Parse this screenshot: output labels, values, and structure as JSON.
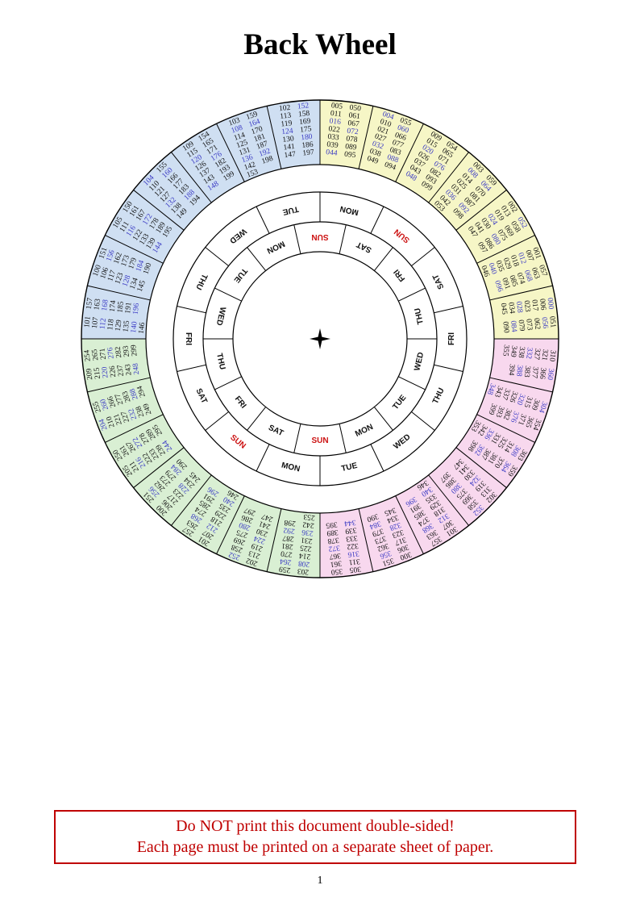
{
  "title": "Back Wheel",
  "page_number": "1",
  "warning": {
    "line1": "Do NOT print this document double-sided!",
    "line2": "Each page must be printed on a separate sheet of paper."
  },
  "colors": {
    "yellow": "#f6f6c6",
    "pink": "#f8d8ee",
    "green": "#d9efd3",
    "blue": "#cfdff2",
    "leap_blue": "#3b3bc4",
    "sun_red": "#cc1111",
    "warning_red": "#bf0000",
    "line": "#000000"
  },
  "wheel": {
    "quadrants": [
      {
        "name": "years-000-099",
        "color_key": "yellow"
      },
      {
        "name": "years-300-399",
        "color_key": "pink"
      },
      {
        "name": "years-200-299",
        "color_key": "green"
      },
      {
        "name": "years-100-199",
        "color_key": "blue"
      }
    ],
    "sectors": [
      {
        "cols": [
          [
            "005",
            "011",
            "016",
            "022",
            "033",
            "039",
            "044"
          ],
          [
            "050",
            "061",
            "067",
            "072",
            "078",
            "089",
            "095"
          ]
        ],
        "blue": [
          "016",
          "044",
          "072"
        ]
      },
      {
        "cols": [
          [
            "004",
            "010",
            "021",
            "027",
            "032",
            "038",
            "049"
          ],
          [
            "055",
            "060",
            "066",
            "077",
            "083",
            "088",
            "094"
          ]
        ],
        "blue": [
          "004",
          "032",
          "060",
          "088"
        ]
      },
      {
        "cols": [
          [
            "009",
            "015",
            "020",
            "026",
            "037",
            "043",
            "048"
          ],
          [
            "054",
            "065",
            "071",
            "076",
            "082",
            "093",
            "099"
          ]
        ],
        "blue": [
          "020",
          "048",
          "076"
        ]
      },
      {
        "cols": [
          [
            "003",
            "008",
            "014",
            "025",
            "031",
            "036",
            "042",
            "053"
          ],
          [
            "059",
            "064",
            "070",
            "081",
            "087",
            "092",
            "098"
          ]
        ],
        "blue": [
          "008",
          "036",
          "064",
          "092"
        ]
      },
      {
        "cols": [
          [
            "002",
            "013",
            "019",
            "024",
            "030",
            "041",
            "047"
          ],
          [
            "052",
            "058",
            "069",
            "075",
            "080",
            "086",
            "097"
          ]
        ],
        "blue": [
          "024",
          "052",
          "080"
        ]
      },
      {
        "cols": [
          [
            "001",
            "007",
            "012",
            "018",
            "029",
            "035",
            "040",
            "046"
          ],
          [
            "057",
            "063",
            "068",
            "074",
            "085",
            "091",
            "096"
          ]
        ],
        "blue": [
          "012",
          "040",
          "068",
          "096"
        ]
      },
      {
        "cols": [
          [
            "000",
            "006",
            "017",
            "023",
            "028",
            "034",
            "045"
          ],
          [
            "051",
            "056",
            "062",
            "073",
            "079",
            "084",
            "090"
          ]
        ],
        "blue": [
          "000",
          "028",
          "056",
          "084"
        ]
      },
      {
        "cols": [
          [
            "310",
            "321",
            "327",
            "332",
            "338",
            "349",
            "355"
          ],
          [
            "360",
            "366",
            "377",
            "383",
            "388",
            "394"
          ]
        ],
        "blue": [
          "332",
          "360",
          "388"
        ]
      },
      {
        "cols": [
          [
            "304",
            "309",
            "315",
            "320",
            "326",
            "337",
            "343",
            "348"
          ],
          [
            "354",
            "365",
            "371",
            "376",
            "382",
            "393",
            "399"
          ]
        ],
        "blue": [
          "304",
          "320",
          "348",
          "376"
        ]
      },
      {
        "cols": [
          [
            "303",
            "308",
            "314",
            "325",
            "331",
            "336",
            "342",
            "353"
          ],
          [
            "359",
            "364",
            "370",
            "381",
            "387",
            "392",
            "398"
          ]
        ],
        "blue": [
          "308",
          "336",
          "364",
          "392"
        ]
      },
      {
        "cols": [
          [
            "302",
            "313",
            "319",
            "324",
            "330",
            "341",
            "347"
          ],
          [
            "352",
            "358",
            "369",
            "375",
            "380",
            "386",
            "397"
          ]
        ],
        "blue": [
          "324",
          "352",
          "380"
        ]
      },
      {
        "cols": [
          [
            "301",
            "307",
            "312",
            "318",
            "329",
            "335",
            "340",
            "346"
          ],
          [
            "357",
            "363",
            "368",
            "374",
            "385",
            "391",
            "396"
          ]
        ],
        "blue": [
          "312",
          "340",
          "368",
          "396"
        ]
      },
      {
        "cols": [
          [
            "300",
            "306",
            "317",
            "323",
            "328",
            "334",
            "345"
          ],
          [
            "351",
            "356",
            "362",
            "373",
            "379",
            "384",
            "390"
          ]
        ],
        "blue": [
          "328",
          "356",
          "384"
        ]
      },
      {
        "cols": [
          [
            "305",
            "311",
            "316",
            "322",
            "333",
            "339",
            "344"
          ],
          [
            "350",
            "361",
            "367",
            "372",
            "378",
            "389",
            "395"
          ]
        ],
        "blue": [
          "316",
          "344",
          "372"
        ]
      },
      {
        "cols": [
          [
            "203",
            "208",
            "214",
            "225",
            "231",
            "236",
            "242",
            "253"
          ],
          [
            "259",
            "264",
            "270",
            "281",
            "287",
            "292",
            "298"
          ]
        ],
        "blue": [
          "208",
          "236",
          "264",
          "292"
        ]
      },
      {
        "cols": [
          [
            "202",
            "213",
            "219",
            "224",
            "230",
            "241",
            "247"
          ],
          [
            "252",
            "258",
            "269",
            "275",
            "280",
            "286",
            "297"
          ]
        ],
        "blue": [
          "224",
          "252",
          "280"
        ]
      },
      {
        "cols": [
          [
            "201",
            "207",
            "212",
            "218",
            "229",
            "235",
            "240",
            "246"
          ],
          [
            "257",
            "263",
            "268",
            "274",
            "285",
            "291",
            "296"
          ]
        ],
        "blue": [
          "212",
          "240",
          "268",
          "296"
        ]
      },
      {
        "cols": [
          [
            "200",
            "206",
            "217",
            "223",
            "228",
            "234",
            "245"
          ],
          [
            "251",
            "256",
            "262",
            "273",
            "279",
            "284",
            "290"
          ]
        ],
        "blue": [
          "228",
          "256",
          "284"
        ]
      },
      {
        "cols": [
          [
            "205",
            "211",
            "216",
            "222",
            "233",
            "239",
            "244"
          ],
          [
            "250",
            "261",
            "267",
            "272",
            "278",
            "289",
            "295"
          ]
        ],
        "blue": [
          "216",
          "244",
          "272"
        ]
      },
      {
        "cols": [
          [
            "204",
            "210",
            "221",
            "227",
            "232",
            "238",
            "249"
          ],
          [
            "255",
            "260",
            "266",
            "277",
            "283",
            "288",
            "294"
          ]
        ],
        "blue": [
          "204",
          "232",
          "260",
          "288"
        ]
      },
      {
        "cols": [
          [
            "209",
            "215",
            "220",
            "226",
            "237",
            "243",
            "248"
          ],
          [
            "254",
            "265",
            "271",
            "276",
            "282",
            "293",
            "299"
          ]
        ],
        "blue": [
          "220",
          "248",
          "276"
        ]
      },
      {
        "cols": [
          [
            "101",
            "107",
            "112",
            "118",
            "129",
            "135",
            "140",
            "146"
          ],
          [
            "157",
            "163",
            "168",
            "174",
            "185",
            "191",
            "196"
          ]
        ],
        "blue": [
          "112",
          "140",
          "168",
          "196"
        ]
      },
      {
        "cols": [
          [
            "100",
            "106",
            "117",
            "123",
            "128",
            "134",
            "145"
          ],
          [
            "151",
            "156",
            "162",
            "173",
            "179",
            "184",
            "190"
          ]
        ],
        "blue": [
          "128",
          "156",
          "184"
        ]
      },
      {
        "cols": [
          [
            "105",
            "111",
            "116",
            "122",
            "133",
            "139",
            "144"
          ],
          [
            "150",
            "161",
            "167",
            "172",
            "178",
            "189",
            "195"
          ]
        ],
        "blue": [
          "116",
          "144",
          "172"
        ]
      },
      {
        "cols": [
          [
            "104",
            "110",
            "121",
            "127",
            "132",
            "138",
            "149"
          ],
          [
            "155",
            "160",
            "166",
            "177",
            "183",
            "188",
            "194"
          ]
        ],
        "blue": [
          "104",
          "132",
          "160",
          "188"
        ]
      },
      {
        "cols": [
          [
            "109",
            "115",
            "120",
            "126",
            "137",
            "143",
            "148"
          ],
          [
            "154",
            "165",
            "171",
            "176",
            "182",
            "193",
            "199"
          ]
        ],
        "blue": [
          "120",
          "148",
          "176"
        ]
      },
      {
        "cols": [
          [
            "103",
            "108",
            "114",
            "125",
            "131",
            "136",
            "142",
            "153"
          ],
          [
            "159",
            "164",
            "170",
            "181",
            "187",
            "192",
            "198"
          ]
        ],
        "blue": [
          "108",
          "136",
          "164",
          "192"
        ]
      },
      {
        "cols": [
          [
            "102",
            "113",
            "119",
            "124",
            "130",
            "141",
            "147"
          ],
          [
            "152",
            "158",
            "169",
            "175",
            "180",
            "186",
            "197"
          ]
        ],
        "blue": [
          "124",
          "152",
          "180"
        ]
      }
    ],
    "day_rings": {
      "labels_clockwise": [
        "SUN",
        "SAT",
        "FRI",
        "THU",
        "WED",
        "TUE",
        "MON"
      ],
      "sunday_label": "SUN",
      "outer_offset_deg": 38.57,
      "inner_offset_deg": 0
    }
  }
}
